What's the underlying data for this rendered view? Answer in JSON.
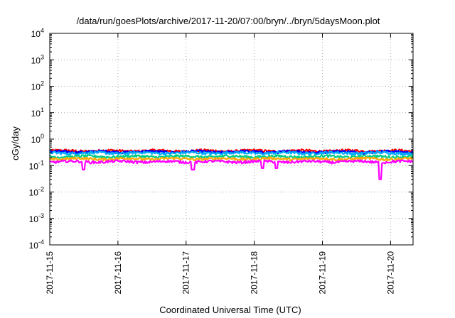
{
  "chart_data": {
    "type": "line",
    "title": "/data/run/goesPlots/archive/2017-11-20/07:00/bryn/../bryn/5daysMoon.plot",
    "xlabel": "Coordinated Universal Time (UTC)",
    "ylabel": "cGy/day",
    "yscale": "log",
    "ylim": [
      0.0001,
      10000
    ],
    "xlim": [
      0,
      5.33
    ],
    "x_ticks": [
      {
        "value": 0,
        "label": "2017-11-15"
      },
      {
        "value": 1,
        "label": "2017-11-16"
      },
      {
        "value": 2,
        "label": "2017-11-17"
      },
      {
        "value": 3,
        "label": "2017-11-18"
      },
      {
        "value": 4,
        "label": "2017-11-19"
      },
      {
        "value": 5,
        "label": "2017-11-20"
      }
    ],
    "y_ticks": [
      {
        "value": 0.0001,
        "base": "10",
        "exp": "-4"
      },
      {
        "value": 0.001,
        "base": "10",
        "exp": "-3"
      },
      {
        "value": 0.01,
        "base": "10",
        "exp": "-2"
      },
      {
        "value": 0.1,
        "base": "10",
        "exp": "-1"
      },
      {
        "value": 1,
        "base": "10",
        "exp": "0"
      },
      {
        "value": 10,
        "base": "10",
        "exp": "1"
      },
      {
        "value": 100,
        "base": "10",
        "exp": "2"
      },
      {
        "value": 1000,
        "base": "10",
        "exp": "3"
      },
      {
        "value": 10000,
        "base": "10",
        "exp": "4"
      }
    ],
    "grid": true,
    "series": [
      {
        "color": "#ff0000",
        "base": 0.36,
        "dips": []
      },
      {
        "color": "#0000ff",
        "base": 0.33,
        "dips": []
      },
      {
        "color": "#00aaff",
        "base": 0.3,
        "dips": []
      },
      {
        "color": "#00cc88",
        "base": 0.22,
        "dips": []
      },
      {
        "color": "#ffaa00",
        "base": 0.18,
        "dips": []
      },
      {
        "color": "#ff00ff",
        "base": 0.14,
        "dips": [
          [
            0.5,
            0.07
          ],
          [
            2.1,
            0.07
          ],
          [
            3.12,
            0.08
          ],
          [
            3.33,
            0.08
          ],
          [
            4.85,
            0.03
          ]
        ]
      }
    ]
  }
}
